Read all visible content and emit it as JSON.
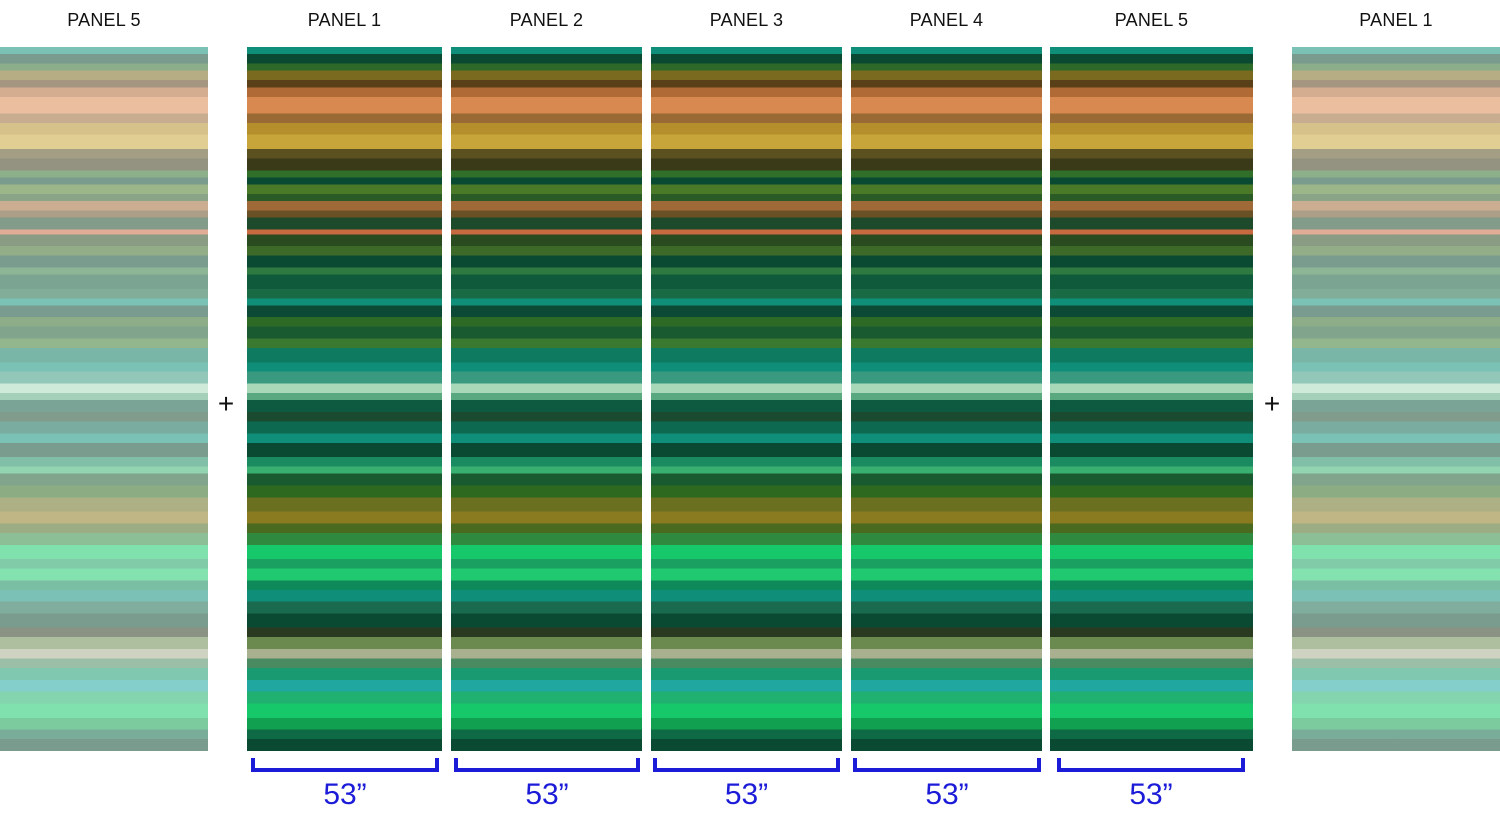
{
  "labels": {
    "left_preview": "PANEL 5",
    "p1": "PANEL 1",
    "p2": "PANEL 2",
    "p3": "PANEL 3",
    "p4": "PANEL 4",
    "p5": "PANEL 5",
    "right_preview": "PANEL 1"
  },
  "plus_sign": "+",
  "dimensions": [
    "53”",
    "53”",
    "53”",
    "53”",
    "53”"
  ],
  "colors": {
    "stripe_dark_green": "#0b4a32",
    "stripe_teal": "#0f8f79",
    "stripe_orange": "#d8894f",
    "stripe_mustard": "#b48f2c",
    "stripe_bright_green": "#17c86a",
    "dimension_blue": "#1b1bd8"
  }
}
